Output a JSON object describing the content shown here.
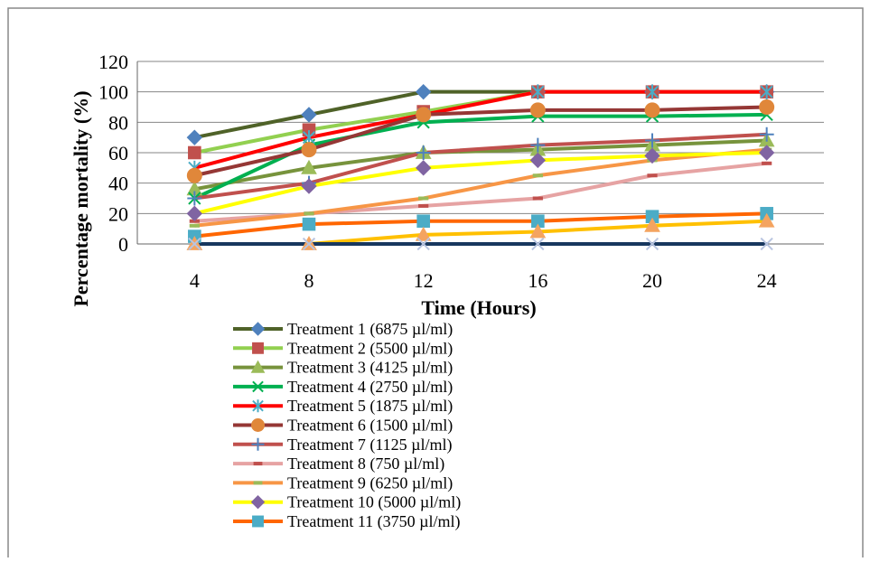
{
  "chart_data": {
    "type": "line",
    "title": "",
    "xlabel": "Time (Hours)",
    "ylabel": "Percentage mortality (%)",
    "categories": [
      4,
      8,
      12,
      16,
      20,
      24
    ],
    "ylim": [
      0,
      120
    ],
    "yticks": [
      0,
      20,
      40,
      60,
      80,
      100,
      120
    ],
    "grid": true,
    "legend": "bottom",
    "series": [
      {
        "name": "Treatment 1 (6875 µl/ml)",
        "color": "#4F6228",
        "marker": "diamond",
        "marker_color": "#4F81BD",
        "values": [
          70,
          85,
          100,
          100,
          100,
          100
        ]
      },
      {
        "name": "Treatment 2 (5500 µl/ml)",
        "color": "#92D050",
        "marker": "square",
        "marker_color": "#C0504D",
        "values": [
          60,
          75,
          87,
          100,
          100,
          100
        ]
      },
      {
        "name": "Treatment 3 (4125 µl/ml)",
        "color": "#77933C",
        "marker": "triangle",
        "marker_color": "#9BBB59",
        "values": [
          36,
          50,
          60,
          62,
          65,
          68
        ]
      },
      {
        "name": "Treatment 4 (2750 µl/ml)",
        "color": "#00B050",
        "marker": "x",
        "marker_color": "#00B050",
        "values": [
          30,
          65,
          80,
          84,
          84,
          85
        ]
      },
      {
        "name": "Treatment 5 (1875 µl/ml)",
        "color": "#FF0000",
        "marker": "star",
        "marker_color": "#4BACC6",
        "values": [
          50,
          70,
          85,
          100,
          100,
          100
        ]
      },
      {
        "name": "Treatment 6 (1500 µl/ml)",
        "color": "#953735",
        "marker": "circle",
        "marker_color": "#E0873A",
        "values": [
          45,
          62,
          85,
          88,
          88,
          90
        ]
      },
      {
        "name": "Treatment 7 (1125 µl/ml)",
        "color": "#C0504D",
        "marker": "plus",
        "marker_color": "#4F81BD",
        "values": [
          30,
          40,
          60,
          65,
          68,
          72
        ]
      },
      {
        "name": "Treatment 8 (750 µl/ml)",
        "color": "#E6A3A3",
        "marker": "dash",
        "marker_color": "#C0504D",
        "values": [
          15,
          20,
          25,
          30,
          45,
          53
        ]
      },
      {
        "name": "Treatment 9 (6250 µl/ml)",
        "color": "#F79646",
        "marker": "dash",
        "marker_color": "#9BBB59",
        "values": [
          12,
          20,
          30,
          45,
          55,
          62
        ]
      },
      {
        "name": "Treatment 10 (5000 µl/ml)",
        "color": "#FFFF00",
        "marker": "diamond",
        "marker_color": "#8064A2",
        "values": [
          20,
          38,
          50,
          55,
          58,
          60
        ]
      },
      {
        "name": "Treatment 11 (3750 µl/ml)",
        "color": "#FF6600",
        "marker": "square",
        "marker_color": "#4BACC6",
        "values": [
          5,
          13,
          15,
          15,
          18,
          20
        ]
      },
      {
        "name": "",
        "color": "#FFC000",
        "marker": "triangle",
        "marker_color": "#F4A460",
        "values": [
          0,
          0,
          6,
          8,
          12,
          15
        ]
      },
      {
        "name": "",
        "color": "#17375E",
        "marker": "x",
        "marker_color": "#B8C4E0",
        "values": [
          0,
          0,
          0,
          0,
          0,
          0
        ]
      }
    ]
  }
}
